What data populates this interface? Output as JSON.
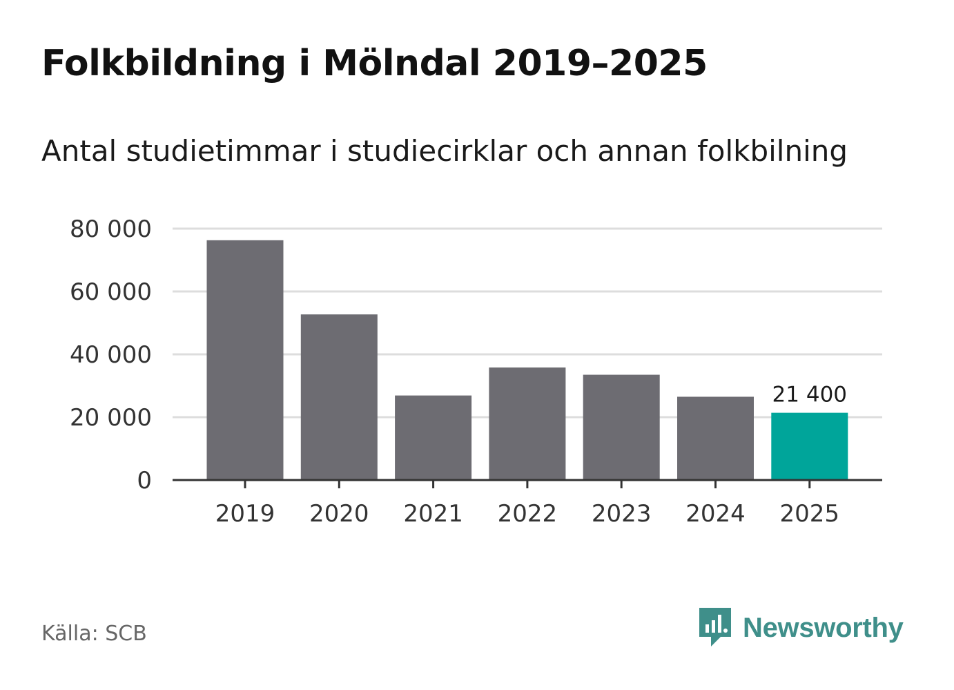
{
  "header": {
    "title": "Folkbildning i Mölndal 2019–2025",
    "subtitle": "Antal studietimmar i studiecirklar och annan folkbilning"
  },
  "chart_data": {
    "type": "bar",
    "title": "Folkbildning i Mölndal 2019–2025",
    "subtitle": "Antal studietimmar i studiecirklar och annan folkbilning",
    "xlabel": "",
    "ylabel": "",
    "categories": [
      "2019",
      "2020",
      "2021",
      "2022",
      "2023",
      "2024",
      "2025"
    ],
    "values": [
      76300,
      52700,
      26900,
      35800,
      33500,
      26500,
      21400
    ],
    "ylim": [
      0,
      80000
    ],
    "yticks": [
      0,
      20000,
      40000,
      60000,
      80000
    ],
    "ytick_labels": [
      "0",
      "20 000",
      "40 000",
      "60 000",
      "80 000"
    ],
    "grid": true,
    "highlight_index": 6,
    "data_labels": [
      {
        "index": 6,
        "text": "21 400"
      }
    ],
    "colors": {
      "bar": "#6d6c72",
      "highlight": "#00a59a",
      "grid": "#dddddd",
      "axis": "#333333"
    }
  },
  "footer": {
    "source": "Källa: SCB",
    "brand": "Newsworthy",
    "brand_color": "#3f8f8a",
    "brand_icon": "newsworthy-logo-icon"
  }
}
